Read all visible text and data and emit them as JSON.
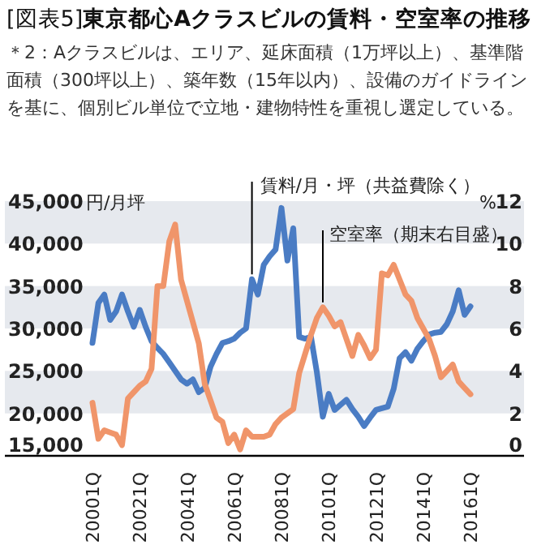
{
  "chart_data": {
    "type": "line",
    "title": "[図表5]**東京都心Aクラスビルの賃料・空室率の推移**",
    "annotations": [
      "＊2：Aクラスビルは、エリア、延床面積（1万坪以上）、基準階面積（300坪以上）、築年数（15年以内）、設備のガイドラインを基に、個別ビル単位で立地・建物特性を重視し選定している。"
    ],
    "ylabel": "円/月坪",
    "y2label": "%",
    "categories": [
      "20001Q",
      null,
      null,
      null,
      null,
      null,
      null,
      null,
      "20021Q",
      null,
      null,
      null,
      null,
      null,
      null,
      null,
      "20041Q",
      null,
      null,
      null,
      null,
      null,
      null,
      null,
      "20061Q",
      null,
      null,
      null,
      null,
      null,
      null,
      null,
      "20081Q",
      null,
      null,
      null,
      null,
      null,
      null,
      null,
      "20101Q",
      null,
      null,
      null,
      null,
      null,
      null,
      null,
      "20121Q",
      null,
      null,
      null,
      null,
      null,
      null,
      null,
      "20141Q",
      null,
      null,
      null,
      null,
      null,
      null,
      null,
      "20161Q"
    ],
    "series": [
      {
        "name": "賃料/月・坪（共益費除く）",
        "color": "#4a7cc4",
        "values": [
          28300,
          33000,
          34000,
          31000,
          32000,
          34000,
          32000,
          30200,
          32200,
          30200,
          28500,
          27700,
          27000,
          26000,
          25000,
          24000,
          23500,
          24000,
          22500,
          23000,
          25500,
          27000,
          28300,
          28500,
          28800,
          29500,
          30000,
          35800,
          34000,
          37500,
          38500,
          39300,
          44200,
          38000,
          41800,
          29000,
          28800,
          29000,
          24800,
          19600,
          22300,
          20400,
          21000,
          21600,
          20500,
          19600,
          18500,
          19500,
          20400,
          20600,
          20800,
          22900,
          26500,
          27200,
          26200,
          27600,
          28500,
          29300,
          29500,
          29600,
          30500,
          32000,
          34500,
          31600,
          32600
        ]
      },
      {
        "name": "空室率（期末右目盛）",
        "color": "#f0956a",
        "axis": "y2",
        "values": [
          2.5,
          0.8,
          1.2,
          1.1,
          1.0,
          0.5,
          2.7,
          3.0,
          3.3,
          3.5,
          4.1,
          8.0,
          8.0,
          10.1,
          10.9,
          8.3,
          7.3,
          6.3,
          5.3,
          3.4,
          2.6,
          1.8,
          1.6,
          0.6,
          1.0,
          0.3,
          1.2,
          0.9,
          0.9,
          0.9,
          1.0,
          1.5,
          1.8,
          2.0,
          2.2,
          3.9,
          4.8,
          5.7,
          6.5,
          7.0,
          6.6,
          6.1,
          6.3,
          5.5,
          4.7,
          5.7,
          5.2,
          4.6,
          5.0,
          8.6,
          8.5,
          9.0,
          8.3,
          7.6,
          7.3,
          6.5,
          6.0,
          5.5,
          4.7,
          3.7,
          4.0,
          4.3,
          3.5,
          3.2,
          2.9
        ]
      }
    ],
    "ylim": [
      15000,
      45000
    ],
    "yticks": [
      {
        "value": 15000,
        "label": "15,000"
      },
      {
        "value": 20000,
        "label": "20,000"
      },
      {
        "value": 25000,
        "label": "25,000"
      },
      {
        "value": 30000,
        "label": "30,000"
      },
      {
        "value": 35000,
        "label": "35,000"
      },
      {
        "value": 40000,
        "label": "40,000"
      },
      {
        "value": 45000,
        "label": "45,000"
      }
    ],
    "y2lim": [
      0,
      12
    ],
    "y2ticks": [
      0,
      2,
      4,
      6,
      8,
      10,
      12
    ],
    "bands": [
      {
        "axis": "y",
        "from": 20000,
        "to": 25000,
        "color": "#e6e9ee"
      },
      {
        "axis": "y",
        "from": 30000,
        "to": 35000,
        "color": "#e6e9ee"
      },
      {
        "axis": "y",
        "from": 40000,
        "to": 45000,
        "color": "#e6e9ee"
      }
    ],
    "legend": false,
    "marker": "none",
    "line_style": "solid"
  }
}
